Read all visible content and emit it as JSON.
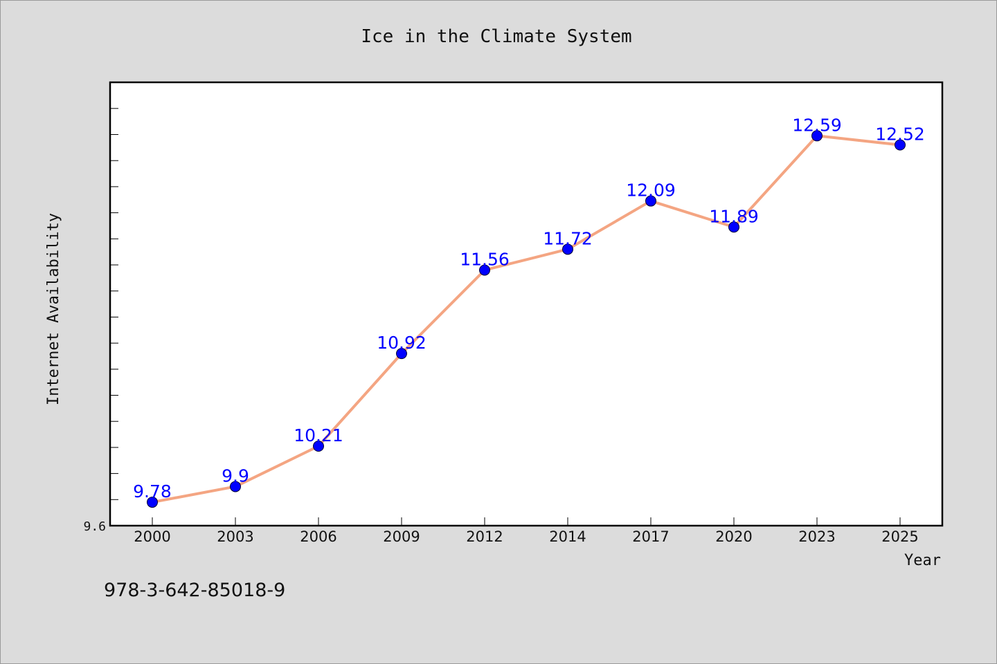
{
  "caption": "978-3-642-85018-9",
  "chart_data": {
    "type": "line",
    "title": "Ice in the Climate System",
    "xlabel": "Year",
    "ylabel": "Internet Availability",
    "categories": [
      "2000",
      "2003",
      "2006",
      "2009",
      "2012",
      "2014",
      "2017",
      "2020",
      "2023",
      "2025"
    ],
    "series": [
      {
        "values": [
          9.78,
          9.9,
          10.21,
          10.92,
          11.56,
          11.72,
          12.09,
          11.89,
          12.59,
          12.52
        ],
        "labels": [
          "9.78",
          "9.9",
          "10.21",
          "10.92",
          "11.56",
          "11.72",
          "12.09",
          "11.89",
          "12.59",
          "12.52"
        ]
      }
    ],
    "ylim": [
      9.6,
      13.0
    ],
    "yticks": [
      "9.6"
    ],
    "grid": false,
    "line_color": "#f4a582",
    "marker_color": "#0000ff",
    "label_color": "#0000ff",
    "plot_background": "#ffffff",
    "page_background": "#dcdcdc"
  }
}
